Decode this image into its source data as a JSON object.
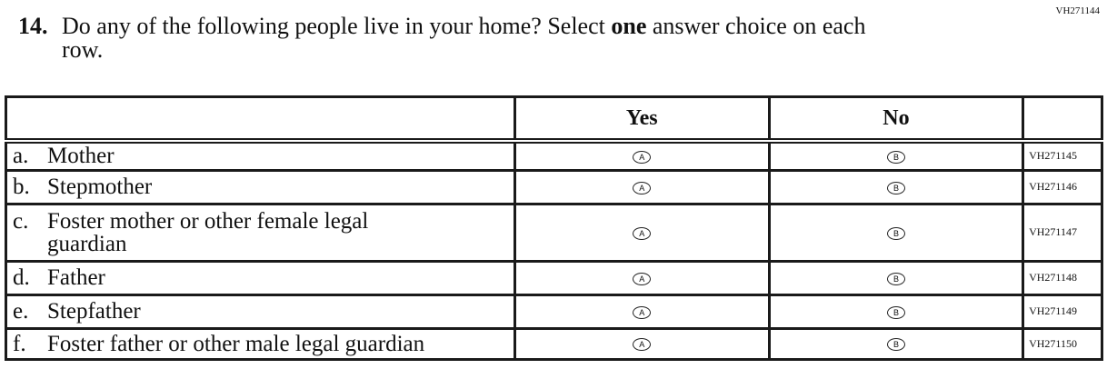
{
  "form_code": "VH271144",
  "question": {
    "number": "14.",
    "text_pre": "Do any of the following people live in your home? Select ",
    "text_bold": "one",
    "text_post": " answer choice on each",
    "text_line2": "row."
  },
  "table": {
    "headers": [
      "",
      "Yes",
      "No",
      ""
    ],
    "rows": [
      {
        "letter": "a.",
        "label": "Mother",
        "label2": "",
        "yes": "A",
        "no": "B",
        "code": "VH271145"
      },
      {
        "letter": "b.",
        "label": "Stepmother",
        "label2": "",
        "yes": "A",
        "no": "B",
        "code": "VH271146"
      },
      {
        "letter": "c.",
        "label": "Foster mother or other female legal",
        "label2": "guardian",
        "yes": "A",
        "no": "B",
        "code": "VH271147"
      },
      {
        "letter": "d.",
        "label": "Father",
        "label2": "",
        "yes": "A",
        "no": "B",
        "code": "VH271148"
      },
      {
        "letter": "e.",
        "label": "Stepfather",
        "label2": "",
        "yes": "A",
        "no": "B",
        "code": "VH271149"
      },
      {
        "letter": "f.",
        "label": "Foster father or other male legal guardian",
        "label2": "",
        "yes": "A",
        "no": "B",
        "code": "VH271150"
      }
    ]
  }
}
